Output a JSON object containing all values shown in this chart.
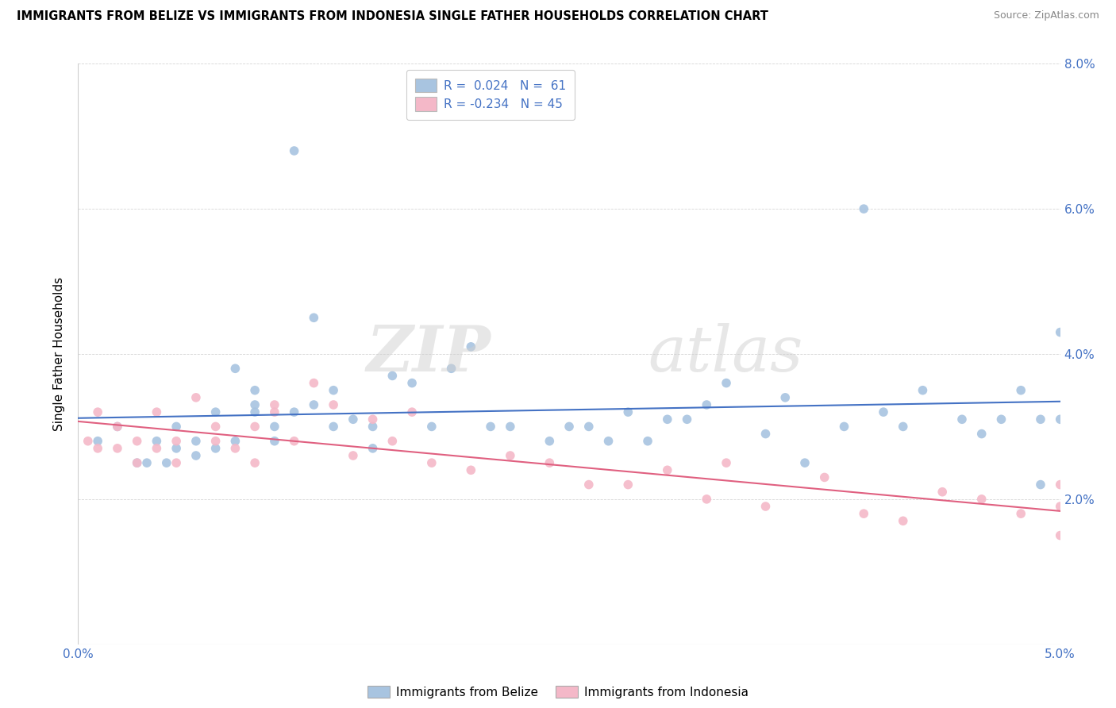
{
  "title": "IMMIGRANTS FROM BELIZE VS IMMIGRANTS FROM INDONESIA SINGLE FATHER HOUSEHOLDS CORRELATION CHART",
  "source": "Source: ZipAtlas.com",
  "ylabel": "Single Father Households",
  "xlim": [
    0.0,
    0.05
  ],
  "ylim": [
    0.0,
    0.08
  ],
  "xticks": [
    0.0,
    0.01,
    0.02,
    0.03,
    0.04,
    0.05
  ],
  "yticks": [
    0.0,
    0.02,
    0.04,
    0.06,
    0.08
  ],
  "xtick_labels": [
    "0.0%",
    "",
    "",
    "",
    "",
    "5.0%"
  ],
  "ytick_labels_right": [
    "",
    "2.0%",
    "4.0%",
    "6.0%",
    "8.0%"
  ],
  "belize_R": 0.024,
  "belize_N": 61,
  "indonesia_R": -0.234,
  "indonesia_N": 45,
  "belize_color": "#a8c4e0",
  "indonesia_color": "#f4b8c8",
  "belize_line_color": "#4472c4",
  "indonesia_line_color": "#e06080",
  "belize_label": "Immigrants from Belize",
  "indonesia_label": "Immigrants from Indonesia",
  "belize_x": [
    0.001,
    0.002,
    0.003,
    0.0035,
    0.004,
    0.0045,
    0.005,
    0.005,
    0.006,
    0.006,
    0.007,
    0.007,
    0.008,
    0.008,
    0.009,
    0.009,
    0.009,
    0.01,
    0.01,
    0.011,
    0.011,
    0.012,
    0.012,
    0.013,
    0.013,
    0.014,
    0.015,
    0.015,
    0.016,
    0.017,
    0.018,
    0.019,
    0.02,
    0.021,
    0.022,
    0.024,
    0.025,
    0.026,
    0.027,
    0.028,
    0.029,
    0.03,
    0.031,
    0.032,
    0.033,
    0.035,
    0.036,
    0.037,
    0.039,
    0.04,
    0.041,
    0.042,
    0.043,
    0.045,
    0.046,
    0.047,
    0.048,
    0.049,
    0.049,
    0.05,
    0.05
  ],
  "belize_y": [
    0.028,
    0.03,
    0.025,
    0.025,
    0.028,
    0.025,
    0.027,
    0.03,
    0.026,
    0.028,
    0.032,
    0.027,
    0.028,
    0.038,
    0.032,
    0.035,
    0.033,
    0.03,
    0.028,
    0.032,
    0.068,
    0.045,
    0.033,
    0.035,
    0.03,
    0.031,
    0.03,
    0.027,
    0.037,
    0.036,
    0.03,
    0.038,
    0.041,
    0.03,
    0.03,
    0.028,
    0.03,
    0.03,
    0.028,
    0.032,
    0.028,
    0.031,
    0.031,
    0.033,
    0.036,
    0.029,
    0.034,
    0.025,
    0.03,
    0.06,
    0.032,
    0.03,
    0.035,
    0.031,
    0.029,
    0.031,
    0.035,
    0.031,
    0.022,
    0.043,
    0.031
  ],
  "indonesia_x": [
    0.0005,
    0.001,
    0.001,
    0.002,
    0.002,
    0.003,
    0.003,
    0.004,
    0.004,
    0.005,
    0.005,
    0.006,
    0.007,
    0.007,
    0.008,
    0.009,
    0.009,
    0.01,
    0.01,
    0.011,
    0.012,
    0.013,
    0.014,
    0.015,
    0.016,
    0.017,
    0.018,
    0.02,
    0.022,
    0.024,
    0.026,
    0.028,
    0.03,
    0.032,
    0.033,
    0.035,
    0.038,
    0.04,
    0.042,
    0.044,
    0.046,
    0.048,
    0.05,
    0.05,
    0.05
  ],
  "indonesia_y": [
    0.028,
    0.027,
    0.032,
    0.027,
    0.03,
    0.025,
    0.028,
    0.027,
    0.032,
    0.025,
    0.028,
    0.034,
    0.03,
    0.028,
    0.027,
    0.025,
    0.03,
    0.032,
    0.033,
    0.028,
    0.036,
    0.033,
    0.026,
    0.031,
    0.028,
    0.032,
    0.025,
    0.024,
    0.026,
    0.025,
    0.022,
    0.022,
    0.024,
    0.02,
    0.025,
    0.019,
    0.023,
    0.018,
    0.017,
    0.021,
    0.02,
    0.018,
    0.019,
    0.015,
    0.022
  ]
}
